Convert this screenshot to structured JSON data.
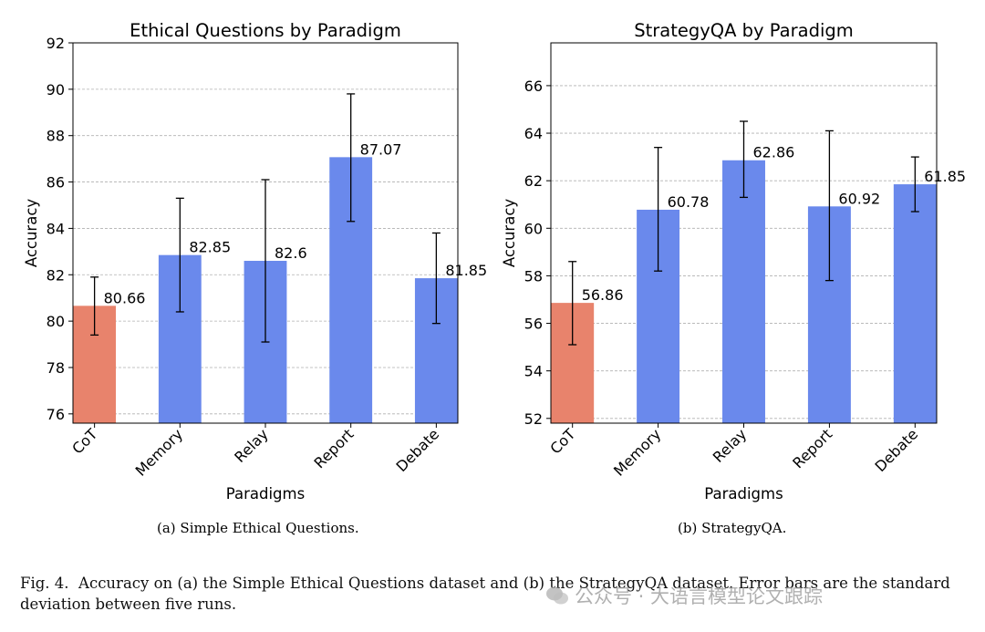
{
  "colors": {
    "baseline": "#E8836C",
    "paradigm": "#6A89EC"
  },
  "chart_data": [
    {
      "type": "bar",
      "title": "Ethical Questions by Paradigm",
      "xlabel": "Paradigms",
      "ylabel": "Accuracy",
      "categories": [
        "CoT",
        "Memory",
        "Relay",
        "Report",
        "Debate"
      ],
      "values": [
        80.66,
        82.85,
        82.6,
        87.07,
        81.85
      ],
      "value_labels": [
        "80.66",
        "82.85",
        "82.6",
        "87.07",
        "81.85"
      ],
      "error_low": [
        79.4,
        80.4,
        79.1,
        84.3,
        79.9
      ],
      "error_high": [
        81.9,
        85.3,
        86.1,
        89.8,
        83.8
      ],
      "ylim": [
        75.6,
        92
      ],
      "yticks": [
        76,
        78,
        80,
        82,
        84,
        86,
        88,
        90,
        92
      ],
      "ytick_labels": [
        "76",
        "78",
        "80",
        "82",
        "84",
        "86",
        "88",
        "90",
        "92"
      ],
      "grid": true,
      "highlight_index": 0
    },
    {
      "type": "bar",
      "title": "StrategyQA by Paradigm",
      "xlabel": "Paradigms",
      "ylabel": "Accuracy",
      "categories": [
        "CoT",
        "Memory",
        "Relay",
        "Report",
        "Debate"
      ],
      "values": [
        56.86,
        60.78,
        62.86,
        60.92,
        61.85
      ],
      "value_labels": [
        "56.86",
        "60.78",
        "62.86",
        "60.92",
        "61.85"
      ],
      "error_low": [
        55.1,
        58.2,
        61.3,
        57.8,
        60.7
      ],
      "error_high": [
        58.6,
        63.4,
        64.5,
        64.1,
        63.0
      ],
      "ylim": [
        51.8,
        67.8
      ],
      "yticks": [
        52,
        54,
        56,
        58,
        60,
        62,
        64,
        66
      ],
      "ytick_labels": [
        "52",
        "54",
        "56",
        "58",
        "60",
        "62",
        "64",
        "66"
      ],
      "grid": true,
      "highlight_index": 0
    }
  ],
  "subcaptions": [
    "(a) Simple Ethical Questions.",
    "(b) StrategyQA."
  ],
  "figure_caption": {
    "label": "Fig. 4.",
    "text": "Accuracy on (a) the Simple Ethical Questions dataset and (b) the StrategyQA dataset. Error bars are the standard deviation between five runs."
  },
  "watermark": "公众号 · 大语言模型论文跟踪"
}
